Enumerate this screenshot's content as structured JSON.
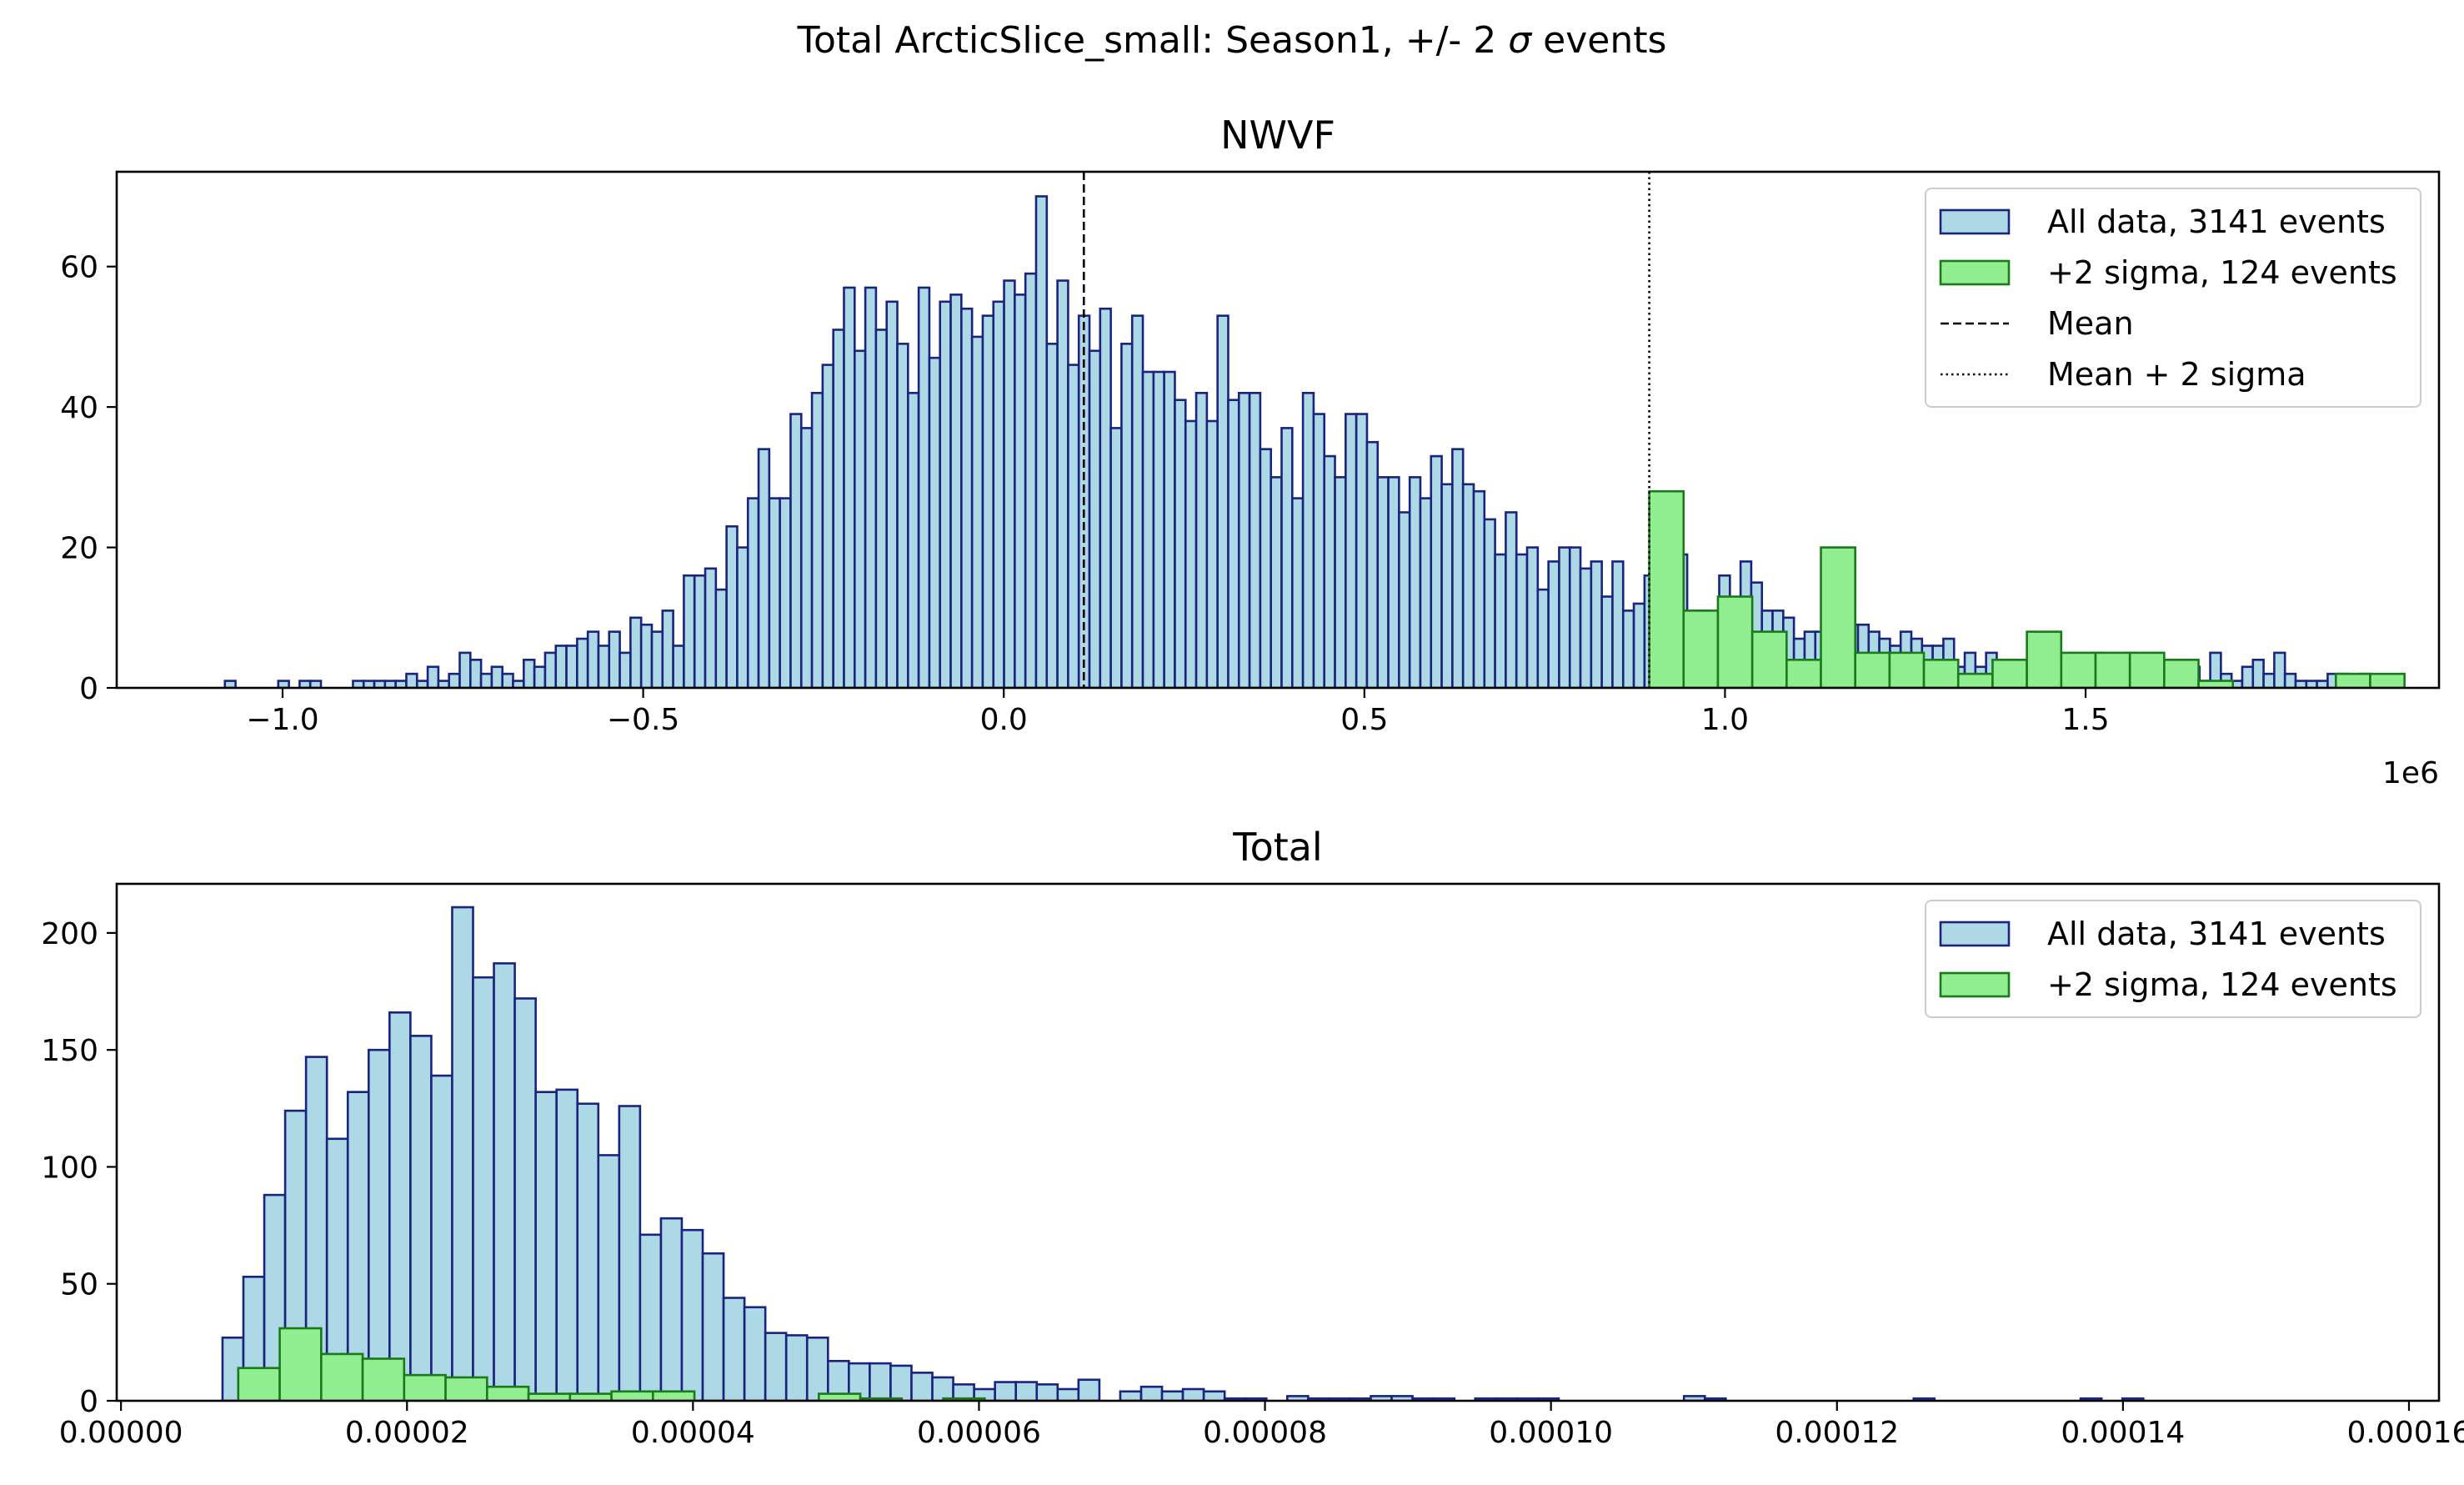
{
  "figure": {
    "suptitle": "Total ArcticSlice_small: Season1, +/- 2 σ events",
    "suptitle_pre": "Total ArcticSlice_small: Season1, +/- 2 ",
    "suptitle_sym": "σ",
    "suptitle_post": " events"
  },
  "colors": {
    "all_fill": "#add8e6",
    "all_edge": "#1a237e",
    "sig_fill": "#90ee90",
    "sig_edge": "#1a7a1a",
    "axis": "#000000"
  },
  "chart_data": [
    {
      "type": "histogram",
      "title": "NWVF",
      "offset_label": "1e6",
      "xlim": [
        -1230000.0,
        1990000.0
      ],
      "ylim": [
        0,
        73.5
      ],
      "xticks": [
        -1.0,
        -0.5,
        0.0,
        0.5,
        1.0,
        1.5
      ],
      "xtick_labels": [
        "−1.0",
        "−0.5",
        "0.0",
        "0.5",
        "1.0",
        "1.5"
      ],
      "xtick_scale": 1000000,
      "yticks": [
        0,
        20,
        40,
        60
      ],
      "legend": {
        "position": "upper right",
        "entries": [
          {
            "kind": "patch",
            "series": "all",
            "label": "All data, 3141 events"
          },
          {
            "kind": "patch",
            "series": "sig",
            "label": "+2 sigma, 124 events"
          },
          {
            "kind": "line",
            "style": "dashed",
            "label": "Mean"
          },
          {
            "kind": "line",
            "style": "dotted",
            "label": "Mean + 2 sigma"
          }
        ]
      },
      "vlines": [
        {
          "x": 111000,
          "style": "dashed"
        },
        {
          "x": 895000,
          "style": "dotted"
        }
      ],
      "series": [
        {
          "key": "all",
          "name": "All data, 3141 events",
          "bin_start": -1080000,
          "bin_width": 14800,
          "counts": [
            1,
            0,
            0,
            0,
            0,
            1,
            0,
            1,
            1,
            0,
            0,
            0,
            1,
            1,
            1,
            1,
            1,
            2,
            1,
            3,
            1,
            2,
            5,
            4,
            2,
            3,
            2,
            1,
            4,
            3,
            5,
            6,
            6,
            7,
            8,
            6,
            8,
            5,
            10,
            9,
            8,
            11,
            6,
            16,
            16,
            17,
            14,
            23,
            20,
            27,
            34,
            27,
            27,
            39,
            37,
            42,
            46,
            51,
            57,
            48,
            57,
            51,
            55,
            49,
            42,
            57,
            47,
            55,
            56,
            54,
            50,
            53,
            55,
            58,
            56,
            59,
            70,
            49,
            58,
            46,
            53,
            48,
            54,
            37,
            49,
            53,
            45,
            45,
            45,
            41,
            38,
            42,
            38,
            53,
            41,
            42,
            42,
            34,
            30,
            37,
            27,
            42,
            39,
            33,
            30,
            39,
            39,
            35,
            30,
            30,
            25,
            30,
            27,
            33,
            29,
            34,
            29,
            28,
            24,
            19,
            25,
            19,
            20,
            14,
            18,
            20,
            20,
            17,
            18,
            13,
            18,
            11,
            12,
            16,
            9,
            12,
            19,
            8,
            11,
            9,
            16,
            10,
            18,
            15,
            11,
            11,
            10,
            7,
            8,
            8,
            7,
            9,
            9,
            9,
            8,
            7,
            6,
            8,
            7,
            6,
            6,
            7,
            3,
            5,
            3,
            5,
            3,
            4,
            2,
            3,
            4,
            2,
            4,
            2,
            3,
            5,
            4,
            2,
            5,
            4,
            3,
            2,
            3,
            3,
            3,
            1,
            5,
            2,
            1,
            3,
            4,
            2,
            5,
            2,
            1,
            1,
            1,
            2,
            2,
            1,
            2,
            1,
            1,
            1,
            0,
            0,
            0,
            0,
            2,
            2,
            0,
            0,
            1,
            1,
            0,
            1,
            0,
            0,
            0,
            0,
            1
          ]
        },
        {
          "key": "sig",
          "name": "+2 sigma, 124 events",
          "bin_start": 895000,
          "bin_width": 47600,
          "counts": [
            28,
            11,
            13,
            8,
            4,
            20,
            5,
            5,
            4,
            2,
            4,
            8,
            5,
            5,
            5,
            4,
            1,
            0,
            0,
            0,
            2,
            2,
            0,
            0,
            1
          ]
        }
      ]
    },
    {
      "type": "histogram",
      "title": "Total",
      "offset_label": "",
      "xlim": [
        -3e-07,
        0.0001621
      ],
      "ylim": [
        0,
        221
      ],
      "xticks": [
        0,
        2e-05,
        4e-05,
        6e-05,
        8e-05,
        0.0001,
        0.00012,
        0.00014,
        0.00016
      ],
      "xtick_labels": [
        "0.00000",
        "0.00002",
        "0.00004",
        "0.00006",
        "0.00008",
        "0.00010",
        "0.00012",
        "0.00014",
        "0.00016"
      ],
      "xtick_scale": 1,
      "yticks": [
        0,
        50,
        100,
        150,
        200
      ],
      "legend": {
        "position": "upper right",
        "entries": [
          {
            "kind": "patch",
            "series": "all",
            "label": "All data, 3141 events"
          },
          {
            "kind": "patch",
            "series": "sig",
            "label": "+2 sigma, 124 events"
          }
        ]
      },
      "vlines": [],
      "series": [
        {
          "key": "all",
          "name": "All data, 3141 events",
          "bin_start": 7.1e-06,
          "bin_width": 1.46e-06,
          "counts": [
            27,
            53,
            88,
            124,
            147,
            112,
            132,
            150,
            166,
            156,
            139,
            211,
            181,
            187,
            172,
            132,
            133,
            127,
            105,
            126,
            71,
            78,
            73,
            63,
            44,
            40,
            29,
            28,
            27,
            17,
            16,
            16,
            15,
            12,
            10,
            7,
            5,
            8,
            8,
            7,
            5,
            9,
            0,
            4,
            6,
            4,
            5,
            4,
            1,
            1,
            0,
            2,
            1,
            1,
            1,
            2,
            2,
            1,
            1,
            0,
            1,
            1,
            1,
            1,
            0,
            0,
            0,
            0,
            0,
            0,
            2,
            1,
            0,
            0,
            0,
            0,
            0,
            0,
            0,
            0,
            0,
            1,
            0,
            0,
            0,
            0,
            0,
            0,
            0,
            1,
            0,
            1,
            0,
            0,
            0,
            0,
            0,
            0,
            0,
            0,
            0,
            0,
            0,
            0,
            0,
            0,
            0,
            1,
            0,
            0,
            0,
            0,
            0,
            0,
            0,
            0,
            0,
            0,
            0,
            0,
            0,
            0,
            0,
            0,
            0,
            0,
            1,
            0,
            0,
            0,
            0,
            0,
            0,
            0,
            0,
            0,
            0,
            0,
            0,
            0,
            0,
            0,
            0,
            0,
            0,
            0,
            0,
            0,
            0,
            0,
            0,
            0,
            0,
            0,
            0,
            0,
            0,
            0,
            0,
            0,
            0,
            1
          ]
        },
        {
          "key": "sig",
          "name": "+2 sigma, 124 events",
          "bin_start": 8.2e-06,
          "bin_width": 2.9e-06,
          "counts": [
            14,
            31,
            20,
            18,
            11,
            10,
            6,
            3,
            3,
            4,
            4,
            0,
            0,
            0,
            3,
            1,
            0,
            1,
            0
          ]
        }
      ]
    }
  ]
}
